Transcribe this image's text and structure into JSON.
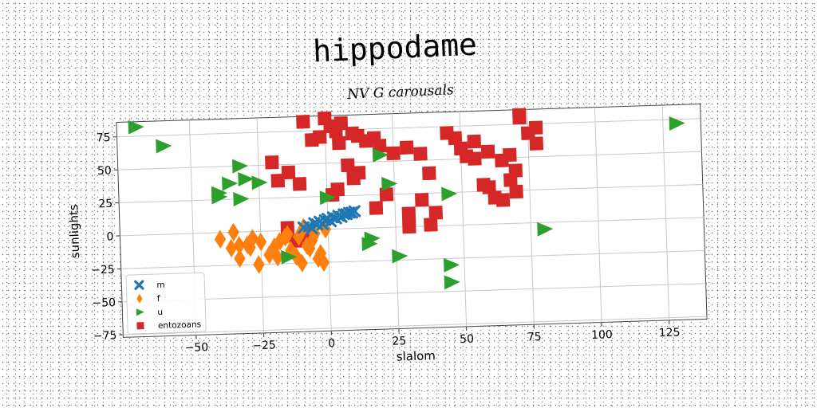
{
  "header": {
    "title": "hippodame",
    "subtitle": "NV G carousals"
  },
  "chart_data": {
    "type": "scatter",
    "title": "hippodame",
    "subtitle": "NV G carousals",
    "xlabel": "slalom",
    "ylabel": "sunlights",
    "xlim": [
      -77,
      139
    ],
    "ylim": [
      -77,
      86
    ],
    "xticks": [
      -50,
      -25,
      0,
      25,
      50,
      75,
      100,
      125
    ],
    "yticks": [
      -75,
      -50,
      -25,
      0,
      25,
      50,
      75
    ],
    "xtick_labels": [
      "−50",
      "−25",
      "0",
      "25",
      "50",
      "75",
      "100",
      "125"
    ],
    "ytick_labels": [
      "−75",
      "−50",
      "−25",
      "0",
      "25",
      "50",
      "75"
    ],
    "grid": true,
    "legend_position": "lower-left",
    "series": [
      {
        "name": "m",
        "marker": "x",
        "color": "#1f77b4",
        "x": [
          -9,
          -7,
          -5,
          -3,
          -1,
          0,
          2,
          4,
          6,
          8,
          10,
          -6,
          -2,
          1,
          5,
          9,
          -4,
          3,
          7
        ],
        "y": [
          2,
          3,
          5,
          6,
          7,
          8,
          9,
          10,
          11,
          12,
          13,
          1,
          4,
          6,
          9,
          12,
          4,
          8,
          11
        ]
      },
      {
        "name": "f",
        "marker": "diamond",
        "color": "#ff7f0e",
        "x": [
          -40,
          -35,
          -33,
          -30,
          -28,
          -26,
          -22,
          -20,
          -18,
          -16,
          -14,
          -12,
          -10,
          -8,
          -6,
          -5,
          -3,
          -2,
          -1,
          -33,
          -29,
          -25,
          -15,
          -11,
          -7,
          -4,
          -9,
          -19,
          -36
        ],
        "y": [
          -5,
          0,
          -20,
          -10,
          -5,
          -25,
          -18,
          -12,
          -8,
          -5,
          -15,
          -20,
          -25,
          -12,
          -8,
          -3,
          -18,
          -25,
          0,
          -10,
          -12,
          -8,
          -3,
          -5,
          -14,
          -22,
          2,
          -20,
          -12
        ]
      },
      {
        "name": "u",
        "marker": "triangle-right",
        "color": "#2ca02c",
        "x": [
          -70,
          -60,
          -40,
          -36,
          -32,
          -30,
          -25,
          -40,
          -32,
          -15,
          0,
          20,
          23,
          15,
          45,
          45,
          16,
          26,
          45,
          80,
          130
        ],
        "y": [
          82,
          67,
          27,
          37,
          50,
          40,
          37,
          30,
          25,
          -20,
          24,
          55,
          33,
          -12,
          24,
          -43,
          -8,
          -22,
          -30,
          -5,
          72
        ],
        "note": ""
      },
      {
        "name": "entozoans",
        "marker": "square",
        "color": "#d62728",
        "x": [
          -8,
          0,
          2,
          4,
          6,
          10,
          -2,
          -5,
          5,
          12,
          15,
          18,
          20,
          25,
          30,
          35,
          38,
          45,
          48,
          50,
          52,
          55,
          60,
          65,
          68,
          70,
          72,
          75,
          78,
          58,
          60,
          62,
          65,
          30,
          18,
          22,
          12,
          10,
          8,
          4,
          2,
          -10,
          -15,
          -12,
          -8,
          -18,
          -14,
          -20,
          40,
          38,
          55,
          68,
          70,
          72,
          35,
          30,
          78
        ],
        "y": [
          82,
          84,
          78,
          74,
          80,
          72,
          70,
          68,
          65,
          70,
          66,
          68,
          62,
          56,
          60,
          55,
          40,
          70,
          66,
          58,
          52,
          50,
          55,
          48,
          52,
          40,
          80,
          68,
          72,
          30,
          28,
          20,
          18,
          10,
          15,
          25,
          42,
          38,
          48,
          30,
          26,
          35,
          2,
          -8,
          -4,
          38,
          44,
          52,
          10,
          1,
          63,
          33,
          24,
          82,
          20,
          0,
          60
        ]
      }
    ]
  }
}
